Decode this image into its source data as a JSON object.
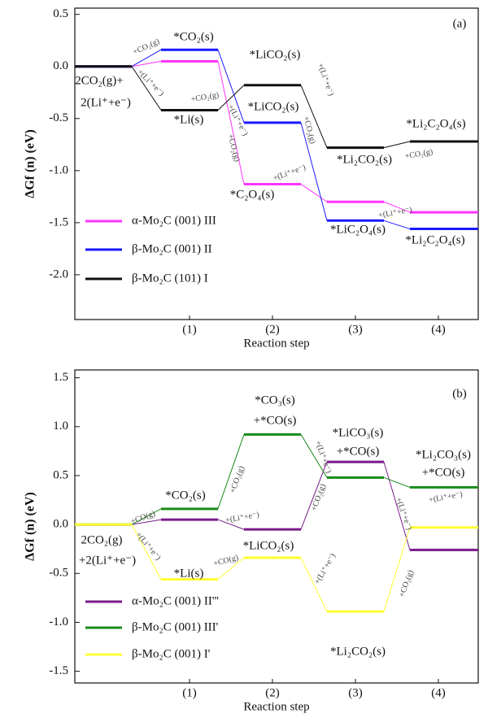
{
  "chart_data": [
    {
      "type": "energy_profile",
      "x_label": "Reaction step",
      "y_label": "ΔGf (n) (eV)",
      "categories": [
        null,
        "(1)",
        "(2)",
        "(3)",
        "(4)"
      ],
      "ylim": [
        -2.43,
        0.56
      ],
      "yticks": [
        0.5,
        {
          "value": 0,
          "label": "0.0"
        },
        -0.5,
        {
          "value": -1,
          "label": "-1.0"
        },
        -1.5,
        {
          "value": -2,
          "label": "-2.0"
        }
      ],
      "series": [
        {
          "name": "α-Mo₂C (001)  III",
          "color": "#ff33ff",
          "values": [
            0,
            0.05,
            -1.13,
            -1.3,
            -1.4
          ]
        },
        {
          "name": "β-Mo₂C (001)  II",
          "color": "#1a1aff",
          "values": [
            0,
            0.16,
            -0.54,
            -1.48,
            -1.56
          ]
        },
        {
          "name": "β-Mo₂C (101)  I",
          "color": "#111111",
          "values": [
            0,
            -0.42,
            -0.18,
            -0.78,
            -0.72
          ]
        }
      ],
      "annotations": [
        "(a)",
        "*CO₂(s)",
        "2CO₂(g)+",
        "2(Li⁺+e⁻)",
        "*Li(s)",
        "+CO₂(g)",
        "+(Li⁺+e⁻)",
        "+CO₂(g)",
        "*LiCO₂(s)",
        "*LiCO₂(s)",
        "+(Li⁺+e⁻)",
        "+CO₂(g)",
        "+CO₂(g)",
        "+(Li⁺+e⁻)",
        "+(Li⁺+e⁻)",
        "*C₂O₄(s)",
        "*Li₂CO₂(s)",
        "+CO₂(g)",
        "*Li₂C₂O₄(s)",
        "+(Li⁺+e⁻)",
        "*LiC₂O₄(s)",
        "*Li₂C₂O₄(s)"
      ]
    },
    {
      "type": "energy_profile",
      "x_label": "Reaction step",
      "y_label": "ΔGf (n) (eV)",
      "categories": [
        null,
        "(1)",
        "(2)",
        "(3)",
        "(4)"
      ],
      "ylim": [
        -1.62,
        1.58
      ],
      "yticks": [
        1.5,
        {
          "value": 1,
          "label": "1.0"
        },
        0.5,
        {
          "value": 0,
          "label": "0.0"
        },
        -0.5,
        {
          "value": -1,
          "label": "-1.0"
        },
        -1.5
      ],
      "series": [
        {
          "name": "α-Mo₂C (001)  II'''",
          "color": "#7a1a8a",
          "values": [
            0,
            0.05,
            -0.05,
            0.64,
            -0.26
          ]
        },
        {
          "name": "β-Mo₂C (001)  III'",
          "color": "#1a8a1a",
          "values": [
            0,
            0.16,
            0.92,
            0.48,
            0.38
          ]
        },
        {
          "name": "β-Mo₂C (001)  I'",
          "color": "#ffff33",
          "values": [
            0,
            -0.56,
            -0.34,
            -0.89,
            -0.03
          ]
        }
      ],
      "annotations": [
        "(b)",
        "*CO₃(s)",
        "+*CO(s)",
        "*LiCO₃(s)",
        "+*CO(s)",
        "*Li₂CO₃(s)",
        "+*CO(s)",
        "*CO₂(s)",
        "2CO₂(g)",
        "+2(Li⁺+e⁻)",
        "*Li(s)",
        "*LiCO₂(s)",
        "*Li₂CO₂(s)",
        "+CO(g)",
        "+(Li⁺+e⁻)",
        "+CO(g)",
        "+CO₂(g)",
        "+(Li⁺+e⁻)",
        "+(Li⁺+e⁻)",
        "+(Li⁺+e⁻)",
        "+CO₂(g)",
        "+(Li⁺+e⁻)",
        "+(Li⁺+e⁻)",
        "+CO₂(g)"
      ]
    }
  ]
}
